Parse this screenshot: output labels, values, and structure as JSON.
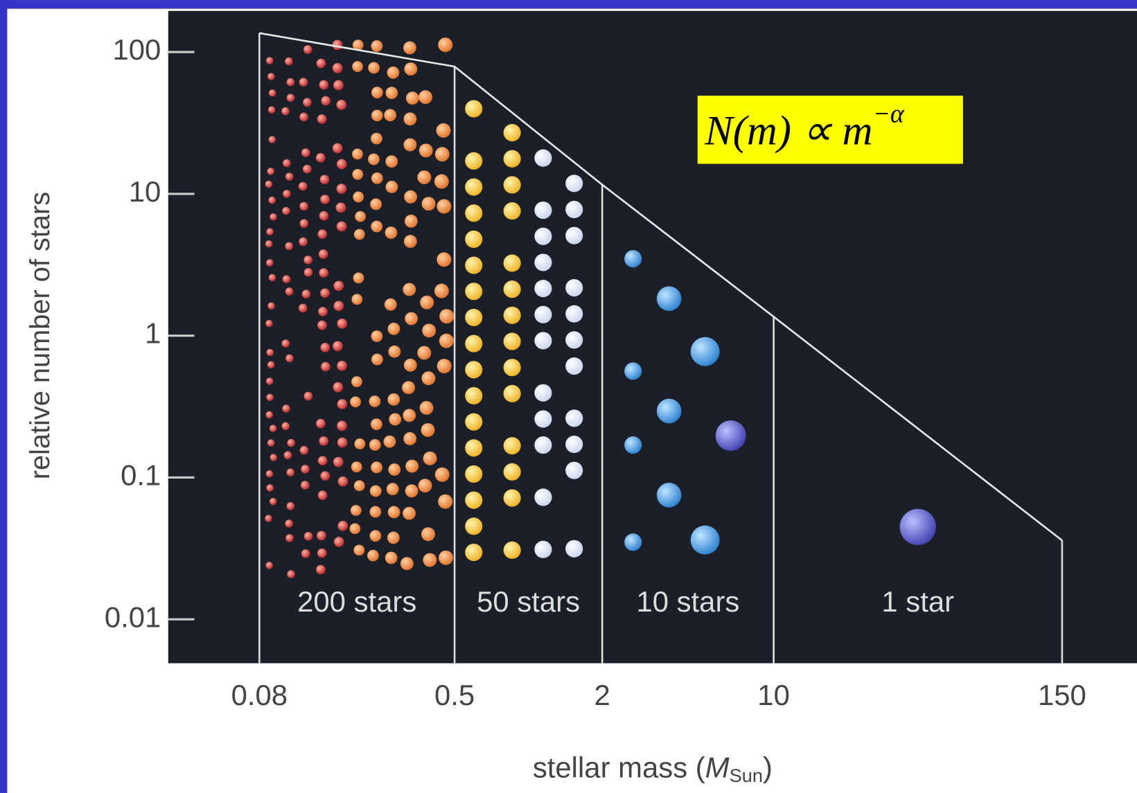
{
  "chart_data": {
    "type": "line",
    "x_label": [
      "stellar mass (",
      "M",
      "Sun",
      ")"
    ],
    "y_label": "relative number of stars",
    "formula": [
      "N(m) ∝ m",
      "−α"
    ],
    "x": [
      0.08,
      0.5,
      2,
      10,
      150
    ],
    "series": [
      {
        "color": "#e8e8e8",
        "values": [
          136,
          79,
          11.6,
          1.36,
          0.036
        ]
      }
    ],
    "bin_labels": [
      "200 stars",
      "50 stars",
      "10 stars",
      "1 star"
    ],
    "xlim": [
      0.034,
      303
    ],
    "ylim": [
      0.0049,
      195
    ],
    "xticks": [
      0.08,
      0.5,
      2,
      10,
      150
    ],
    "yticks": [
      100,
      10,
      1,
      0.1,
      0.01
    ],
    "log_x": true,
    "log_y": true
  }
}
